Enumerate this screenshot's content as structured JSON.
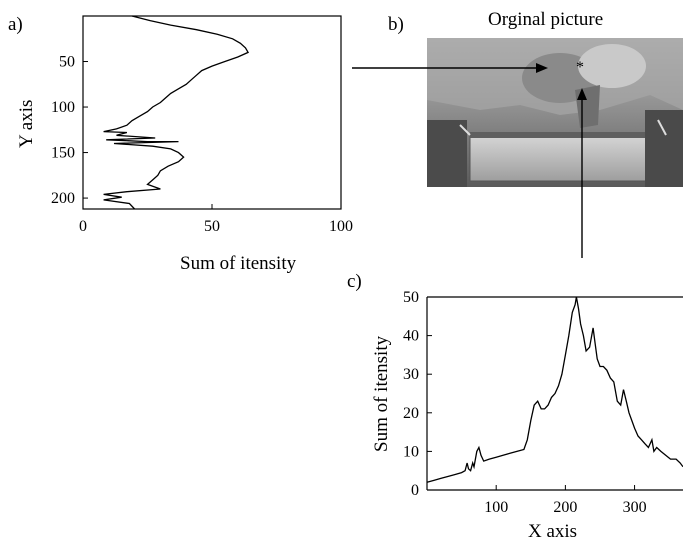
{
  "panels": {
    "a": {
      "label": "a)"
    },
    "b": {
      "label": "b)",
      "title": "Orginal picture"
    },
    "c": {
      "label": "c)"
    }
  },
  "chart_data": [
    {
      "id": "a",
      "type": "line",
      "xlabel": "Sum of itensity",
      "ylabel": "Y axis",
      "xlim": [
        0,
        100
      ],
      "ylim": [
        0,
        212
      ],
      "y_inverted": true,
      "xticks": [
        0,
        50,
        100
      ],
      "yticks": [
        50,
        100,
        150,
        200
      ],
      "grid": false,
      "points": [
        [
          19,
          0
        ],
        [
          26,
          5
        ],
        [
          34,
          10
        ],
        [
          44,
          15
        ],
        [
          52,
          20
        ],
        [
          58,
          25
        ],
        [
          61,
          30
        ],
        [
          63,
          35
        ],
        [
          64,
          40
        ],
        [
          60,
          45
        ],
        [
          55,
          50
        ],
        [
          50,
          55
        ],
        [
          46,
          60
        ],
        [
          44,
          65
        ],
        [
          42,
          70
        ],
        [
          40,
          75
        ],
        [
          37,
          80
        ],
        [
          34,
          85
        ],
        [
          32,
          90
        ],
        [
          30,
          95
        ],
        [
          27,
          100
        ],
        [
          25,
          105
        ],
        [
          22,
          110
        ],
        [
          19,
          115
        ],
        [
          17,
          120
        ],
        [
          13,
          124
        ],
        [
          8,
          127
        ],
        [
          17,
          128
        ],
        [
          13,
          131
        ],
        [
          28,
          134
        ],
        [
          9,
          136
        ],
        [
          25,
          138
        ],
        [
          37,
          138
        ],
        [
          12,
          140
        ],
        [
          27,
          143
        ],
        [
          34,
          146
        ],
        [
          37,
          150
        ],
        [
          39,
          155
        ],
        [
          37,
          160
        ],
        [
          33,
          165
        ],
        [
          30,
          170
        ],
        [
          29,
          175
        ],
        [
          27,
          180
        ],
        [
          25,
          185
        ],
        [
          30,
          190
        ],
        [
          17,
          193
        ],
        [
          8,
          196
        ],
        [
          15,
          199
        ],
        [
          8,
          202
        ],
        [
          18,
          206
        ],
        [
          20,
          212
        ]
      ]
    },
    {
      "id": "c",
      "type": "line",
      "xlabel": "X axis",
      "ylabel": "Sum of itensity",
      "xlim": [
        0,
        370
      ],
      "ylim": [
        0,
        50
      ],
      "xticks": [
        100,
        200,
        300
      ],
      "yticks": [
        0,
        10,
        20,
        30,
        40,
        50
      ],
      "grid": false,
      "points": [
        [
          0,
          2
        ],
        [
          10,
          2.5
        ],
        [
          20,
          3
        ],
        [
          30,
          3.5
        ],
        [
          40,
          4
        ],
        [
          50,
          4.5
        ],
        [
          55,
          5
        ],
        [
          58,
          7
        ],
        [
          60,
          5.5
        ],
        [
          63,
          5
        ],
        [
          66,
          7
        ],
        [
          68,
          6
        ],
        [
          70,
          8
        ],
        [
          72,
          10
        ],
        [
          75,
          11
        ],
        [
          78,
          9
        ],
        [
          82,
          7.5
        ],
        [
          90,
          8
        ],
        [
          100,
          8.5
        ],
        [
          110,
          9
        ],
        [
          120,
          9.5
        ],
        [
          130,
          10
        ],
        [
          140,
          10.5
        ],
        [
          145,
          13
        ],
        [
          150,
          18
        ],
        [
          155,
          22
        ],
        [
          160,
          23
        ],
        [
          165,
          21
        ],
        [
          170,
          21
        ],
        [
          175,
          22
        ],
        [
          180,
          24
        ],
        [
          185,
          25
        ],
        [
          190,
          27
        ],
        [
          195,
          30
        ],
        [
          200,
          35
        ],
        [
          205,
          40
        ],
        [
          210,
          46
        ],
        [
          214,
          48
        ],
        [
          216,
          50
        ],
        [
          219,
          47
        ],
        [
          222,
          43
        ],
        [
          226,
          40
        ],
        [
          230,
          36
        ],
        [
          235,
          37
        ],
        [
          240,
          42
        ],
        [
          243,
          38
        ],
        [
          246,
          34
        ],
        [
          250,
          32
        ],
        [
          255,
          32
        ],
        [
          260,
          31
        ],
        [
          265,
          29
        ],
        [
          270,
          28
        ],
        [
          275,
          23
        ],
        [
          280,
          22
        ],
        [
          284,
          26
        ],
        [
          288,
          23
        ],
        [
          292,
          20
        ],
        [
          296,
          18
        ],
        [
          300,
          16
        ],
        [
          305,
          14
        ],
        [
          310,
          13
        ],
        [
          315,
          12
        ],
        [
          320,
          11
        ],
        [
          325,
          13
        ],
        [
          328,
          10
        ],
        [
          332,
          11
        ],
        [
          338,
          10
        ],
        [
          345,
          9
        ],
        [
          352,
          8
        ],
        [
          360,
          8
        ],
        [
          366,
          7
        ],
        [
          370,
          6
        ]
      ]
    }
  ]
}
